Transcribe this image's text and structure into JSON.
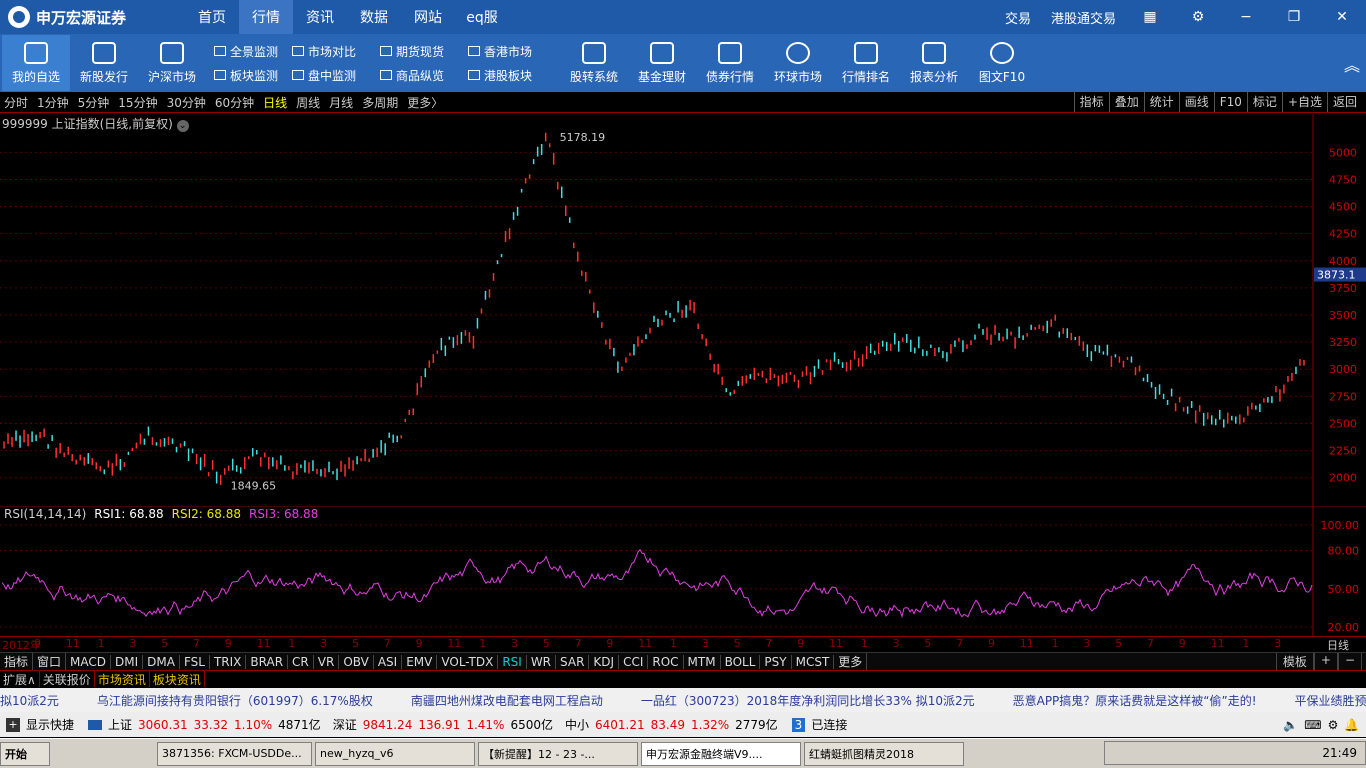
{
  "app": {
    "logo": "申万宏源证券",
    "nav": [
      "首页",
      "行情",
      "资讯",
      "数据",
      "网站",
      "eq服"
    ],
    "active_nav": "行情",
    "right_links": [
      "交易",
      "港股通交易"
    ]
  },
  "toolbar": {
    "big_left": [
      {
        "label": "我的自选",
        "icon": "camera-icon"
      },
      {
        "label": "新股发行",
        "icon": "edit-icon"
      },
      {
        "label": "沪深市场",
        "icon": "chart-icon"
      }
    ],
    "small": [
      [
        "全景监测",
        "板块监测"
      ],
      [
        "市场对比",
        "盘中监测"
      ],
      [
        "期货现货",
        "商品纵览"
      ],
      [
        "香港市场",
        "港股板块"
      ]
    ],
    "big_right": [
      {
        "label": "股转系统",
        "icon": "camera-icon"
      },
      {
        "label": "基金理财",
        "icon": "fund-icon"
      },
      {
        "label": "债券行情",
        "icon": "bond-icon"
      },
      {
        "label": "环球市场",
        "icon": "globe-icon"
      },
      {
        "label": "行情排名",
        "icon": "camera-icon"
      },
      {
        "label": "报表分析",
        "icon": "edit-icon"
      },
      {
        "label": "图文F10",
        "icon": "user-icon"
      }
    ]
  },
  "periods": [
    "分时",
    "1分钟",
    "5分钟",
    "15分钟",
    "30分钟",
    "60分钟",
    "日线",
    "周线",
    "月线",
    "多周期",
    "更多〉"
  ],
  "active_period": "日线",
  "right_buttons": [
    "指标",
    "叠加",
    "统计",
    "画线",
    "F10",
    "标记",
    "+自选",
    "返回"
  ],
  "chart_title": "999999 上证指数(日线,前复权)",
  "rsi_header": {
    "name": "RSI(14,14,14)",
    "rsi1": "RSI1: 68.88",
    "rsi2": "RSI2: 68.88",
    "rsi3": "RSI3: 68.88"
  },
  "x_labels": [
    "2012年",
    "9",
    "11",
    "1",
    "3",
    "5",
    "7",
    "9",
    "11",
    "1",
    "3",
    "5",
    "7",
    "9",
    "11",
    "1",
    "3",
    "5",
    "7",
    "9",
    "11",
    "1",
    "3",
    "5",
    "7",
    "9",
    "11",
    "1",
    "3",
    "5",
    "7",
    "9",
    "11",
    "1",
    "3",
    "5",
    "7",
    "9",
    "11",
    "1",
    "3"
  ],
  "period_label": "日线",
  "indicators": [
    "指标",
    "窗口",
    "MACD",
    "DMI",
    "DMA",
    "FSL",
    "TRIX",
    "BRAR",
    "CR",
    "VR",
    "OBV",
    "ASI",
    "EMV",
    "VOL-TDX",
    "RSI",
    "WR",
    "SAR",
    "KDJ",
    "CCI",
    "ROC",
    "MTM",
    "BOLL",
    "PSY",
    "MCST",
    "更多"
  ],
  "active_indicator": "RSI",
  "ind_right": [
    "模板",
    "+",
    "−"
  ],
  "tabs": [
    "扩展∧",
    "关联报价",
    "市场资讯",
    "板块资讯"
  ],
  "news": [
    "乌江能源间接持有贵阳银行（601997）6.17%股权",
    "南疆四地州煤改电配套电网工程启动",
    "一品红（300723）2018年度净利润同比增长33% 拟10派2元",
    "恶意APP搞鬼？原来话费就是这样被“偷”走的!",
    "平保业绩胜预期，会"
  ],
  "news_lead": "拟10派2元",
  "status": {
    "shortcut": "显示快捷",
    "sh": {
      "name": "上证",
      "val": "3060.31",
      "chg": "33.32",
      "pct": "1.10%",
      "amt": "4871亿"
    },
    "sz": {
      "name": "深证",
      "val": "9841.24",
      "chg": "136.91",
      "pct": "1.41%",
      "amt": "6500亿"
    },
    "zx": {
      "name": "中小",
      "val": "6401.21",
      "chg": "83.49",
      "pct": "1.32%",
      "amt": "2779亿"
    },
    "conn_num": "3",
    "conn": "已连接"
  },
  "taskbar": {
    "start": "开始",
    "tasks": [
      "3871356: FXCM-USDDe...",
      "new_hyzq_v6",
      "【新提醒】12 - 23 -...",
      "申万宏源金融终端V9....",
      "红蜻蜓抓图精灵2018"
    ],
    "time": "21:49"
  },
  "chart_data": {
    "type": "line",
    "title": "999999 上证指数(日线,前复权)",
    "ylim": [
      1849.65,
      5178.19
    ],
    "yticks": [
      2000,
      2250,
      2500,
      2750,
      3000,
      3250,
      3500,
      3750,
      4000,
      4250,
      4500,
      4750,
      5000
    ],
    "current": "3873.1",
    "max_label": "5178.19",
    "min_label": "1849.65",
    "x": [
      "2012-01",
      "2012-04",
      "2012-07",
      "2012-10",
      "2013-01",
      "2013-04",
      "2013-07",
      "2013-10",
      "2014-01",
      "2014-04",
      "2014-07",
      "2014-10",
      "2014-12",
      "2015-02",
      "2015-04",
      "2015-06",
      "2015-07",
      "2015-08",
      "2015-10",
      "2015-12",
      "2016-01",
      "2016-03",
      "2016-06",
      "2016-09",
      "2016-12",
      "2017-03",
      "2017-06",
      "2017-09",
      "2017-12",
      "2018-01",
      "2018-02",
      "2018-04",
      "2018-07",
      "2018-10",
      "2019-01",
      "2019-02",
      "2019-03"
    ],
    "values": [
      2300,
      2400,
      2150,
      2070,
      2400,
      2250,
      2000,
      2200,
      2050,
      2050,
      2200,
      2400,
      3200,
      3300,
      4300,
      5178,
      3900,
      3000,
      3400,
      3600,
      2750,
      2950,
      2900,
      3050,
      3150,
      3250,
      3100,
      3350,
      3300,
      3450,
      3150,
      3100,
      2800,
      2600,
      2500,
      2700,
      3060
    ],
    "rsi_ylim": [
      20,
      100
    ],
    "rsi_ticks": [
      20,
      50,
      80,
      100
    ]
  }
}
